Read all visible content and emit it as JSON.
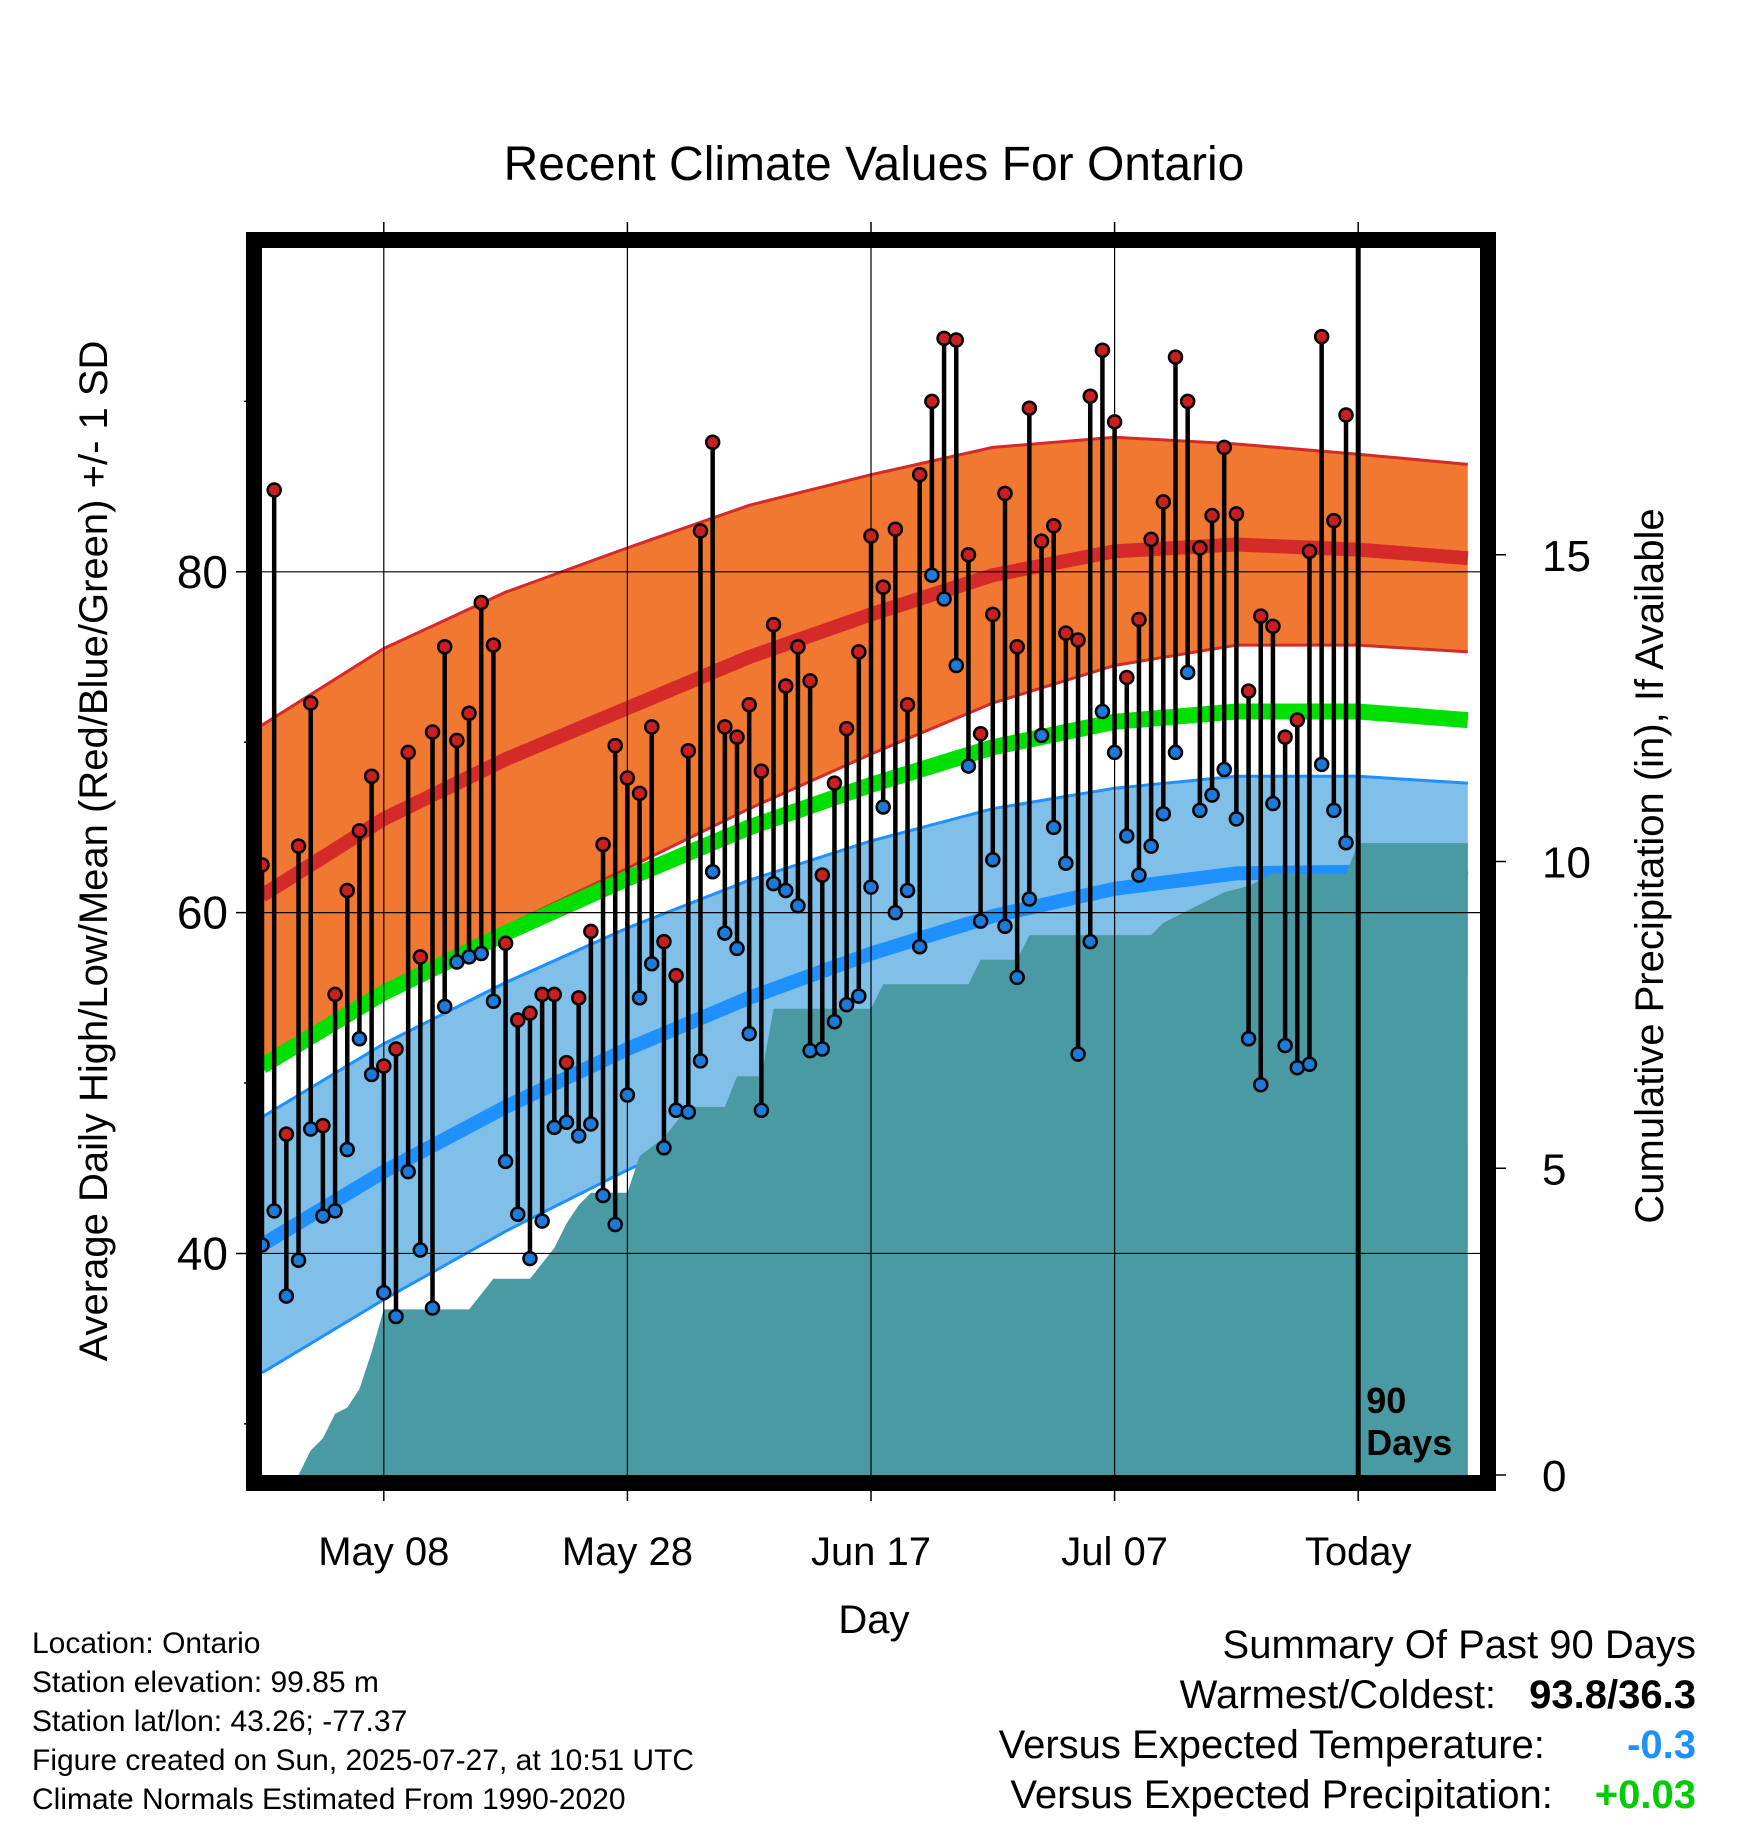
{
  "chart_data": {
    "type": "line",
    "title": "Recent Climate Values For Ontario",
    "xlabel": "Day",
    "ylabel": "Average Daily High/Low/Mean (Red/Blue/Green) +/- 1 SD",
    "y2label": "Cumulative Precipitation (in), If Available",
    "x_ticks": [
      {
        "day": 10,
        "label": "May 08"
      },
      {
        "day": 30,
        "label": "May 28"
      },
      {
        "day": 50,
        "label": "Jun 17"
      },
      {
        "day": 70,
        "label": "Jul 07"
      },
      {
        "day": 90,
        "label": "Today"
      }
    ],
    "xlim": [
      0,
      100
    ],
    "ylim": [
      27,
      99
    ],
    "y_ticks": [
      40,
      60,
      80
    ],
    "y_minor_ticks": [
      30,
      50,
      70,
      90
    ],
    "y2lim": [
      0,
      20
    ],
    "y2_ticks": [
      0,
      5,
      10,
      15
    ],
    "today_marker": {
      "day": 90,
      "label_line1": "90",
      "label_line2": "Days"
    },
    "colors": {
      "high_band": "#f07830",
      "high_mean": "#d42a2a",
      "low_band": "#80c0e8",
      "low_mean": "#1e90ff",
      "mean_line": "#00e000",
      "precip": "#4a9aa4",
      "high_dot": "#c82020",
      "low_dot": "#1e7ad8"
    },
    "normal_high": [
      [
        0,
        61.0
      ],
      [
        10,
        65.5
      ],
      [
        20,
        69.0
      ],
      [
        30,
        72.0
      ],
      [
        40,
        75.0
      ],
      [
        50,
        77.5
      ],
      [
        60,
        79.8
      ],
      [
        70,
        81.2
      ],
      [
        80,
        81.6
      ],
      [
        90,
        81.3
      ],
      [
        99,
        80.8
      ]
    ],
    "normal_high_sd": [
      10.0,
      10.0,
      9.8,
      9.4,
      8.9,
      8.2,
      7.5,
      6.7,
      5.9,
      5.6,
      5.5
    ],
    "normal_mean": [
      [
        0,
        51.0
      ],
      [
        10,
        55.3
      ],
      [
        20,
        58.8
      ],
      [
        30,
        62.0
      ],
      [
        40,
        65.0
      ],
      [
        50,
        67.5
      ],
      [
        60,
        69.7
      ],
      [
        70,
        71.2
      ],
      [
        80,
        71.8
      ],
      [
        90,
        71.8
      ],
      [
        99,
        71.3
      ]
    ],
    "normal_low": [
      [
        0,
        40.5
      ],
      [
        10,
        44.8
      ],
      [
        20,
        48.6
      ],
      [
        30,
        52.0
      ],
      [
        40,
        55.0
      ],
      [
        50,
        57.6
      ],
      [
        60,
        59.8
      ],
      [
        70,
        61.4
      ],
      [
        80,
        62.3
      ],
      [
        90,
        62.4
      ],
      [
        99,
        62.0
      ]
    ],
    "normal_low_sd": [
      7.5,
      7.5,
      7.3,
      7.1,
      6.9,
      6.6,
      6.3,
      5.9,
      5.7,
      5.6,
      5.6
    ],
    "daily": [
      {
        "day": 0,
        "high": 62.8,
        "low": 40.5
      },
      {
        "day": 1,
        "high": 84.8,
        "low": 42.5
      },
      {
        "day": 2,
        "high": 47.0,
        "low": 37.5
      },
      {
        "day": 3,
        "high": 63.9,
        "low": 39.6
      },
      {
        "day": 4,
        "high": 72.3,
        "low": 47.3
      },
      {
        "day": 5,
        "high": 47.5,
        "low": 42.2
      },
      {
        "day": 6,
        "high": 55.2,
        "low": 42.5
      },
      {
        "day": 7,
        "high": 61.3,
        "low": 46.1
      },
      {
        "day": 8,
        "high": 64.8,
        "low": 52.6
      },
      {
        "day": 9,
        "high": 68.0,
        "low": 50.5
      },
      {
        "day": 10,
        "high": 51.0,
        "low": 37.7
      },
      {
        "day": 11,
        "high": 52.0,
        "low": 36.3
      },
      {
        "day": 12,
        "high": 69.4,
        "low": 44.8
      },
      {
        "day": 13,
        "high": 57.4,
        "low": 40.2
      },
      {
        "day": 14,
        "high": 70.6,
        "low": 36.8
      },
      {
        "day": 15,
        "high": 75.6,
        "low": 54.5
      },
      {
        "day": 16,
        "high": 70.1,
        "low": 57.1
      },
      {
        "day": 17,
        "high": 71.7,
        "low": 57.4
      },
      {
        "day": 18,
        "high": 78.2,
        "low": 57.6
      },
      {
        "day": 19,
        "high": 75.7,
        "low": 54.8
      },
      {
        "day": 20,
        "high": 58.2,
        "low": 45.4
      },
      {
        "day": 21,
        "high": 53.7,
        "low": 42.3
      },
      {
        "day": 22,
        "high": 54.1,
        "low": 39.7
      },
      {
        "day": 23,
        "high": 55.2,
        "low": 41.9
      },
      {
        "day": 24,
        "high": 55.2,
        "low": 47.4
      },
      {
        "day": 25,
        "high": 51.2,
        "low": 47.7
      },
      {
        "day": 26,
        "high": 55.0,
        "low": 46.9
      },
      {
        "day": 27,
        "high": 58.9,
        "low": 47.6
      },
      {
        "day": 28,
        "high": 64.0,
        "low": 43.4
      },
      {
        "day": 29,
        "high": 69.8,
        "low": 41.7
      },
      {
        "day": 30,
        "high": 67.9,
        "low": 49.3
      },
      {
        "day": 31,
        "high": 67.0,
        "low": 55.0
      },
      {
        "day": 32,
        "high": 70.9,
        "low": 57.0
      },
      {
        "day": 33,
        "high": 58.3,
        "low": 46.2
      },
      {
        "day": 34,
        "high": 56.3,
        "low": 48.4
      },
      {
        "day": 35,
        "high": 69.5,
        "low": 48.3
      },
      {
        "day": 36,
        "high": 82.4,
        "low": 51.3
      },
      {
        "day": 37,
        "high": 87.6,
        "low": 62.4
      },
      {
        "day": 38,
        "high": 70.9,
        "low": 58.8
      },
      {
        "day": 39,
        "high": 70.3,
        "low": 57.9
      },
      {
        "day": 40,
        "high": 72.2,
        "low": 52.9
      },
      {
        "day": 41,
        "high": 68.3,
        "low": 48.4
      },
      {
        "day": 42,
        "high": 76.9,
        "low": 61.7
      },
      {
        "day": 43,
        "high": 73.3,
        "low": 61.3
      },
      {
        "day": 44,
        "high": 75.6,
        "low": 60.4
      },
      {
        "day": 45,
        "high": 73.6,
        "low": 51.9
      },
      {
        "day": 46,
        "high": 62.2,
        "low": 52.0
      },
      {
        "day": 47,
        "high": 67.6,
        "low": 53.6
      },
      {
        "day": 48,
        "high": 70.8,
        "low": 54.6
      },
      {
        "day": 49,
        "high": 75.3,
        "low": 55.1
      },
      {
        "day": 50,
        "high": 82.1,
        "low": 61.5
      },
      {
        "day": 51,
        "high": 79.1,
        "low": 66.2
      },
      {
        "day": 52,
        "high": 82.5,
        "low": 60.0
      },
      {
        "day": 53,
        "high": 72.2,
        "low": 61.3
      },
      {
        "day": 54,
        "high": 85.7,
        "low": 58.0
      },
      {
        "day": 55,
        "high": 90.0,
        "low": 79.8
      },
      {
        "day": 56,
        "high": 93.7,
        "low": 78.4
      },
      {
        "day": 57,
        "high": 93.6,
        "low": 74.5
      },
      {
        "day": 58,
        "high": 81.0,
        "low": 68.6
      },
      {
        "day": 59,
        "high": 70.5,
        "low": 59.5
      },
      {
        "day": 60,
        "high": 77.5,
        "low": 63.1
      },
      {
        "day": 61,
        "high": 84.6,
        "low": 59.2
      },
      {
        "day": 62,
        "high": 75.6,
        "low": 56.2
      },
      {
        "day": 63,
        "high": 89.6,
        "low": 60.8
      },
      {
        "day": 64,
        "high": 81.8,
        "low": 70.4
      },
      {
        "day": 65,
        "high": 82.7,
        "low": 65.0
      },
      {
        "day": 66,
        "high": 76.4,
        "low": 62.9
      },
      {
        "day": 67,
        "high": 76.0,
        "low": 51.7
      },
      {
        "day": 68,
        "high": 90.3,
        "low": 58.3
      },
      {
        "day": 69,
        "high": 93.0,
        "low": 71.8
      },
      {
        "day": 70,
        "high": 88.8,
        "low": 69.4
      },
      {
        "day": 71,
        "high": 73.8,
        "low": 64.5
      },
      {
        "day": 72,
        "high": 77.2,
        "low": 62.2
      },
      {
        "day": 73,
        "high": 81.9,
        "low": 63.9
      },
      {
        "day": 74,
        "high": 84.1,
        "low": 65.8
      },
      {
        "day": 75,
        "high": 92.6,
        "low": 69.4
      },
      {
        "day": 76,
        "high": 90.0,
        "low": 74.1
      },
      {
        "day": 77,
        "high": 81.4,
        "low": 66.0
      },
      {
        "day": 78,
        "high": 83.3,
        "low": 66.9
      },
      {
        "day": 79,
        "high": 87.3,
        "low": 68.4
      },
      {
        "day": 80,
        "high": 83.4,
        "low": 65.5
      },
      {
        "day": 81,
        "high": 73.0,
        "low": 52.6
      },
      {
        "day": 82,
        "high": 77.4,
        "low": 49.9
      },
      {
        "day": 83,
        "high": 76.8,
        "low": 66.4
      },
      {
        "day": 84,
        "high": 70.3,
        "low": 52.2
      },
      {
        "day": 85,
        "high": 71.3,
        "low": 50.9
      },
      {
        "day": 86,
        "high": 81.2,
        "low": 51.1
      },
      {
        "day": 87,
        "high": 93.8,
        "low": 68.7
      },
      {
        "day": 88,
        "high": 83.0,
        "low": 66.0
      },
      {
        "day": 89,
        "high": 89.2,
        "low": 64.1
      }
    ],
    "precip_cumulative": [
      [
        0,
        0.0
      ],
      [
        3,
        0.0
      ],
      [
        4,
        0.4
      ],
      [
        5,
        0.6
      ],
      [
        6,
        1.0
      ],
      [
        7,
        1.1
      ],
      [
        8,
        1.4
      ],
      [
        9,
        2.0
      ],
      [
        10,
        2.7
      ],
      [
        17,
        2.7
      ],
      [
        19,
        3.2
      ],
      [
        22,
        3.2
      ],
      [
        24,
        3.7
      ],
      [
        25,
        4.1
      ],
      [
        26,
        4.4
      ],
      [
        27,
        4.6
      ],
      [
        30,
        4.6
      ],
      [
        31,
        5.2
      ],
      [
        33,
        5.5
      ],
      [
        35,
        6.0
      ],
      [
        38,
        6.0
      ],
      [
        39,
        6.5
      ],
      [
        41,
        6.5
      ],
      [
        42,
        7.6
      ],
      [
        50,
        7.6
      ],
      [
        51,
        8.0
      ],
      [
        58,
        8.0
      ],
      [
        59,
        8.4
      ],
      [
        62,
        8.4
      ],
      [
        63,
        8.8
      ],
      [
        73,
        8.8
      ],
      [
        74,
        9.0
      ],
      [
        77,
        9.3
      ],
      [
        79,
        9.5
      ],
      [
        81,
        9.6
      ],
      [
        83,
        9.8
      ],
      [
        89,
        9.8
      ],
      [
        90,
        10.3
      ],
      [
        99,
        10.3
      ]
    ],
    "location": "Location: Ontario",
    "elevation": "Station elevation: 99.85 m",
    "latlon": "Station lat/lon: 43.26; -77.37",
    "created": "Figure created on Sun, 2025-07-27, at 10:51 UTC",
    "normals": "Climate Normals Estimated From 1990-2020",
    "summary_title": "Summary Of Past 90 Days",
    "summary_warmest_label": "Warmest/Coldest:",
    "summary_warmest_value": "93.8/36.3",
    "summary_temp_label": "Versus Expected Temperature:",
    "summary_temp_value": "-0.3",
    "summary_temp_color": "#1e90ff",
    "summary_precip_label": "Versus Expected Precipitation:",
    "summary_precip_value": "+0.03",
    "summary_precip_color": "#00cc00"
  }
}
